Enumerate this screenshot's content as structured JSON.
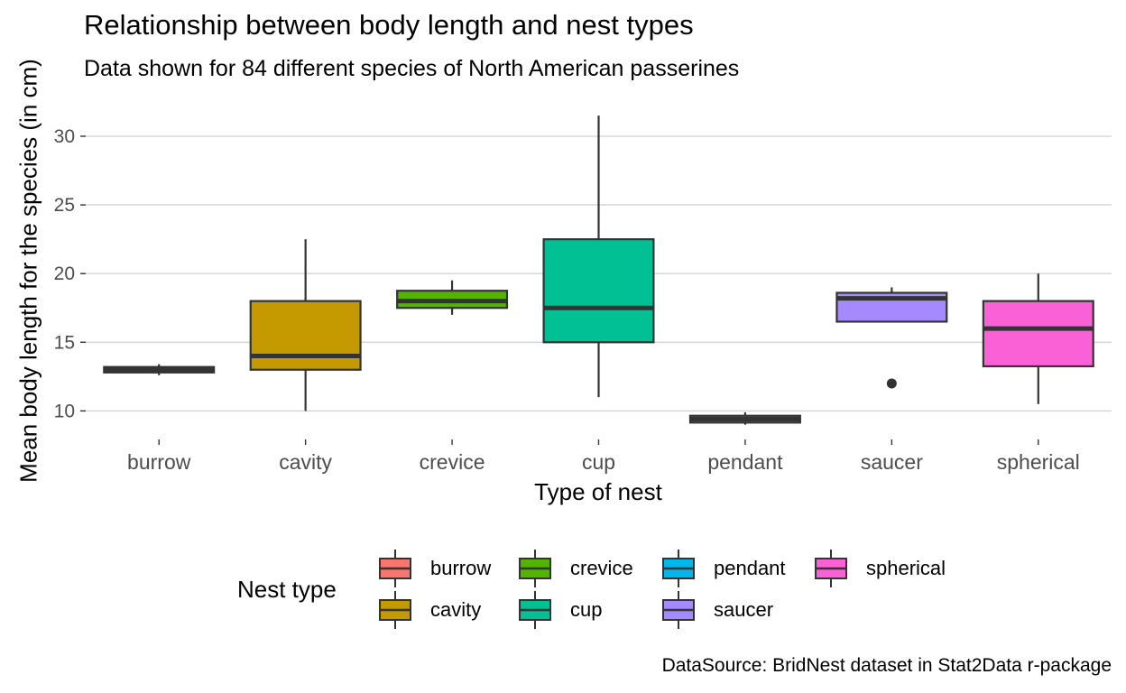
{
  "chart_data": {
    "type": "box",
    "title": "Relationship between body length and nest types",
    "subtitle": "Data shown for 84 different species of North American passerines",
    "xlabel": "Type of nest",
    "ylabel": "Mean body length for the species (in cm)",
    "caption": "DataSource: BridNest dataset in Stat2Data r-package",
    "ylim": [
      8.5,
      32.5
    ],
    "yticks": [
      10,
      15,
      20,
      25,
      30
    ],
    "grid": true,
    "legend_title": "Nest type",
    "legend_position": "bottom",
    "categories": [
      "burrow",
      "cavity",
      "crevice",
      "cup",
      "pendant",
      "saucer",
      "spherical"
    ],
    "boxes": [
      {
        "name": "burrow",
        "min": 12.6,
        "q1": 12.8,
        "median": 13.0,
        "q3": 13.2,
        "max": 13.4,
        "outliers": [],
        "color": "#F8766D"
      },
      {
        "name": "cavity",
        "min": 10.0,
        "q1": 13.0,
        "median": 14.0,
        "q3": 18.0,
        "max": 22.5,
        "outliers": [],
        "color": "#C49A00"
      },
      {
        "name": "crevice",
        "min": 17.0,
        "q1": 17.5,
        "median": 18.0,
        "q3": 18.75,
        "max": 19.5,
        "outliers": [],
        "color": "#53B400"
      },
      {
        "name": "cup",
        "min": 11.0,
        "q1": 15.0,
        "median": 17.5,
        "q3": 22.5,
        "max": 31.5,
        "outliers": [],
        "color": "#00C094"
      },
      {
        "name": "pendant",
        "min": 9.0,
        "q1": 9.15,
        "median": 9.4,
        "q3": 9.65,
        "max": 9.9,
        "outliers": [],
        "color": "#00B6EB"
      },
      {
        "name": "saucer",
        "min": 16.5,
        "q1": 16.5,
        "median": 18.2,
        "q3": 18.6,
        "max": 19.0,
        "outliers": [
          12.0
        ],
        "color": "#A58AFF"
      },
      {
        "name": "spherical",
        "min": 10.5,
        "q1": 13.25,
        "median": 16.0,
        "q3": 18.0,
        "max": 20.0,
        "outliers": [],
        "color": "#FB61D7"
      }
    ]
  }
}
